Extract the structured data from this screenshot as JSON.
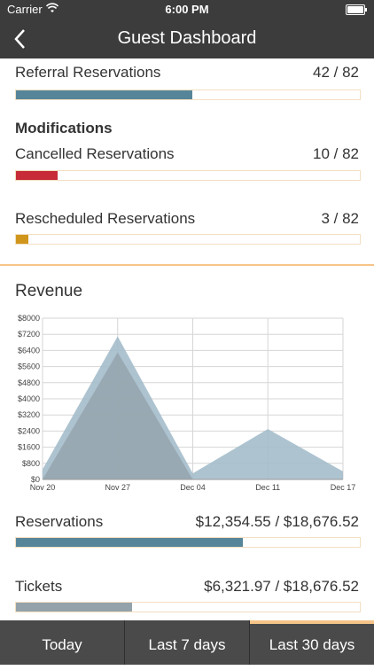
{
  "status": {
    "carrier": "Carrier",
    "time": "6:00 PM"
  },
  "nav": {
    "title": "Guest Dashboard"
  },
  "referral": {
    "label": "Referral Reservations",
    "value": "42 / 82",
    "fraction": 0.512,
    "color": "#56859a"
  },
  "modifications": {
    "title": "Modifications",
    "cancelled": {
      "label": "Cancelled Reservations",
      "value": "10 / 82",
      "fraction": 0.122,
      "color": "#c62b37"
    },
    "rescheduled": {
      "label": "Rescheduled Reservations",
      "value": "3 / 82",
      "fraction": 0.037,
      "color": "#d0961c"
    }
  },
  "revenue": {
    "title": "Revenue",
    "reservations": {
      "label": "Reservations",
      "value": "$12,354.55 / $18,676.52",
      "fraction": 0.661,
      "color": "#56859a"
    },
    "tickets": {
      "label": "Tickets",
      "value": "$6,321.97 / $18,676.52",
      "fraction": 0.338,
      "color": "#94a3ab"
    }
  },
  "chart_data": {
    "type": "area",
    "x": [
      "Nov 20",
      "Nov 27",
      "Dec 04",
      "Dec 11",
      "Dec 17"
    ],
    "ylim": [
      0,
      8000
    ],
    "yticks": [
      "$0",
      "$800",
      "$1600",
      "$2400",
      "$3200",
      "$4000",
      "$4800",
      "$5600",
      "$6400",
      "$7200",
      "$8000"
    ],
    "grid": true,
    "series": [
      {
        "values": [
          500,
          7100,
          300,
          2500,
          400
        ],
        "color": "#a4bccb"
      },
      {
        "values": [
          0,
          6300,
          0,
          0,
          0
        ],
        "color": "#97a6af"
      }
    ]
  },
  "tabs": [
    {
      "label": "Today",
      "active": false
    },
    {
      "label": "Last 7 days",
      "active": false
    },
    {
      "label": "Last 30 days",
      "active": true,
      "accent": "#f6c488"
    }
  ]
}
